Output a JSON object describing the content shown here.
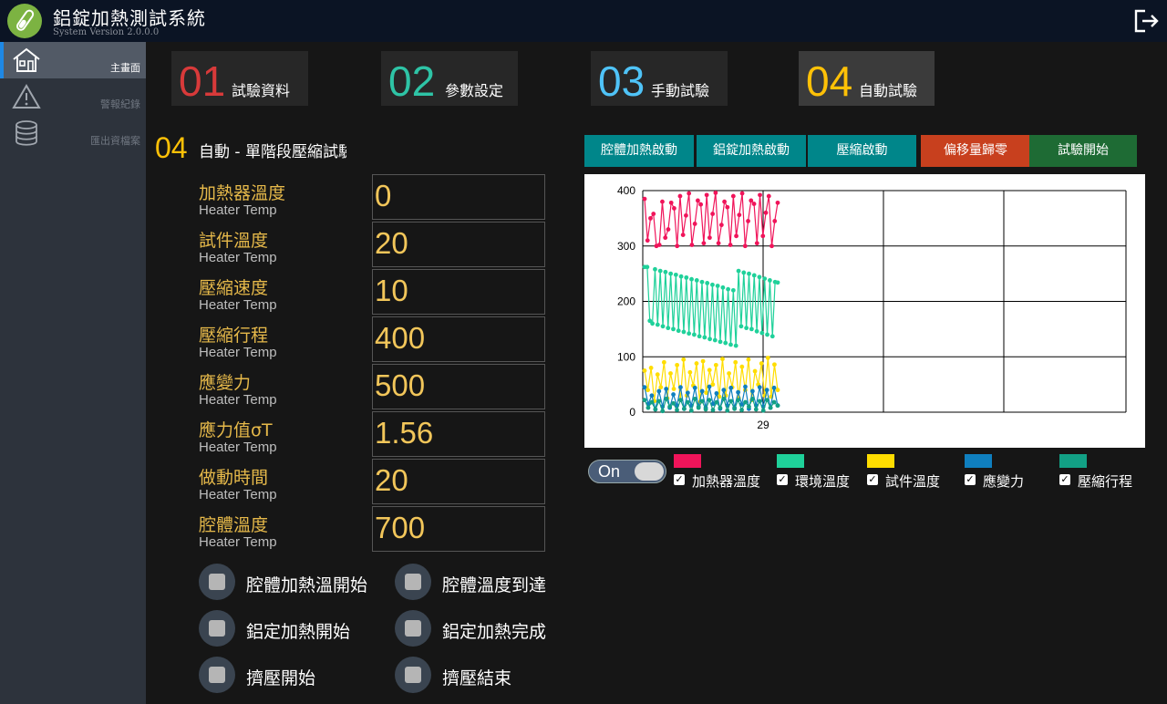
{
  "app": {
    "title": "鋁錠加熱測試系統",
    "version": "System Version 2.0.0.0"
  },
  "sidebar": {
    "items": [
      {
        "label": "主畫面",
        "icon": "home-icon",
        "active": true
      },
      {
        "label": "警報紀錄",
        "icon": "warning-icon",
        "active": false
      },
      {
        "label": "匯出資檔案",
        "icon": "database-icon",
        "active": false
      }
    ]
  },
  "nav": {
    "tabs": [
      {
        "num": "01",
        "label": "試驗資料",
        "color": "#d83a3a"
      },
      {
        "num": "02",
        "label": "參數設定",
        "color": "#2ec4a6"
      },
      {
        "num": "03",
        "label": "手動試驗",
        "color": "#4fc3f7"
      },
      {
        "num": "04",
        "label": "自動試驗",
        "color": "#ffc107"
      }
    ]
  },
  "section": {
    "num": "04",
    "title": "自動 - 單階段壓縮試驗"
  },
  "params": [
    {
      "label": "加熱器溫度",
      "sub": "Heater Temp",
      "value": "0"
    },
    {
      "label": "試件溫度",
      "sub": "Heater Temp",
      "value": "20"
    },
    {
      "label": "壓縮速度",
      "sub": "Heater Temp",
      "value": "10"
    },
    {
      "label": "壓縮行程",
      "sub": "Heater Temp",
      "value": "400"
    },
    {
      "label": "應變力",
      "sub": "Heater Temp",
      "value": "500"
    },
    {
      "label": "應力值σT",
      "sub": "Heater Temp",
      "value": "1.56"
    },
    {
      "label": "做動時間",
      "sub": "Heater Temp",
      "value": "20"
    },
    {
      "label": "腔體溫度",
      "sub": "Heater Temp",
      "value": "700"
    }
  ],
  "status": [
    {
      "label": "腔體加熱溫開始"
    },
    {
      "label": "腔體溫度到達"
    },
    {
      "label": "鋁定加熱開始"
    },
    {
      "label": "鋁定加熱完成"
    },
    {
      "label": "擠壓開始"
    },
    {
      "label": "擠壓結束"
    }
  ],
  "controls": [
    {
      "label": "腔體加熱啟動",
      "color": "#00868a"
    },
    {
      "label": "鋁錠加熱啟動",
      "color": "#00868a"
    },
    {
      "label": "壓縮啟動",
      "color": "#00868a"
    },
    {
      "label": "偏移量歸零",
      "color": "#c8401e"
    },
    {
      "label": "試驗開始",
      "color": "#1e6b34"
    }
  ],
  "toggle": {
    "label": "On"
  },
  "legend": [
    {
      "label": "加熱器溫度",
      "color": "#f0145a"
    },
    {
      "label": "環境溫度",
      "color": "#1fd19a"
    },
    {
      "label": "試件溫度",
      "color": "#ffdd00"
    },
    {
      "label": "應變力",
      "color": "#0f7fbf"
    },
    {
      "label": "壓縮行程",
      "color": "#12a085"
    }
  ],
  "chart_data": {
    "type": "line",
    "x_tick_labels": [
      "29"
    ],
    "yticks": [
      0,
      100,
      200,
      300,
      400
    ],
    "ylim": [
      0,
      400
    ],
    "grid": true,
    "series": [
      {
        "name": "加熱器溫度",
        "color": "#f0145a",
        "values": [
          385,
          310,
          350,
          358,
          300,
          302,
          380,
          315,
          330,
          378,
          368,
          300,
          390,
          320,
          355,
          395,
          302,
          340,
          382,
          375,
          305,
          392,
          315,
          358,
          396,
          305,
          338,
          380,
          370,
          302,
          390,
          318,
          356,
          395,
          300,
          345,
          382,
          376,
          305,
          392,
          318,
          360,
          390,
          300,
          345,
          378
        ]
      },
      {
        "name": "環境溫度",
        "color": "#1fd19a",
        "values": [
          262,
          262,
          165,
          160,
          258,
          158,
          255,
          155,
          253,
          152,
          250,
          150,
          248,
          147,
          245,
          145,
          243,
          142,
          240,
          140,
          238,
          137,
          235,
          135,
          233,
          132,
          230,
          130,
          228,
          127,
          225,
          125,
          222,
          122,
          220,
          120,
          255,
          155,
          252,
          152,
          250,
          150,
          247,
          146,
          244,
          143,
          241,
          140,
          238,
          137,
          235,
          234
        ]
      },
      {
        "name": "試件溫度",
        "color": "#ffdd00",
        "values": [
          75,
          40,
          80,
          20,
          68,
          45,
          90,
          25,
          70,
          42,
          85,
          22,
          95,
          30,
          72,
          48,
          88,
          18,
          92,
          35,
          76,
          50,
          85,
          28,
          96,
          30,
          70,
          45,
          90,
          25,
          82,
          40,
          95,
          22,
          74,
          50,
          88,
          30,
          98,
          28,
          86,
          40
        ]
      },
      {
        "name": "應變力",
        "color": "#0f7fbf",
        "values": [
          45,
          15,
          30,
          5,
          38,
          10,
          42,
          8,
          32,
          12,
          45,
          6,
          35,
          12,
          44,
          10,
          38,
          8,
          46,
          15,
          34,
          6,
          40,
          12,
          44,
          8,
          36,
          14,
          46,
          6,
          38,
          12,
          45,
          10,
          40,
          8,
          44,
          12
        ]
      },
      {
        "name": "壓縮行程",
        "color": "#12a085",
        "values": [
          22,
          8,
          18,
          5,
          20,
          2,
          24,
          10,
          16,
          4,
          22,
          6,
          18,
          3,
          24,
          8,
          20,
          5,
          22,
          4,
          18,
          8,
          24,
          3,
          20,
          6,
          22,
          4,
          18,
          10,
          24,
          5,
          20,
          3,
          22,
          8,
          18,
          12
        ]
      }
    ]
  }
}
